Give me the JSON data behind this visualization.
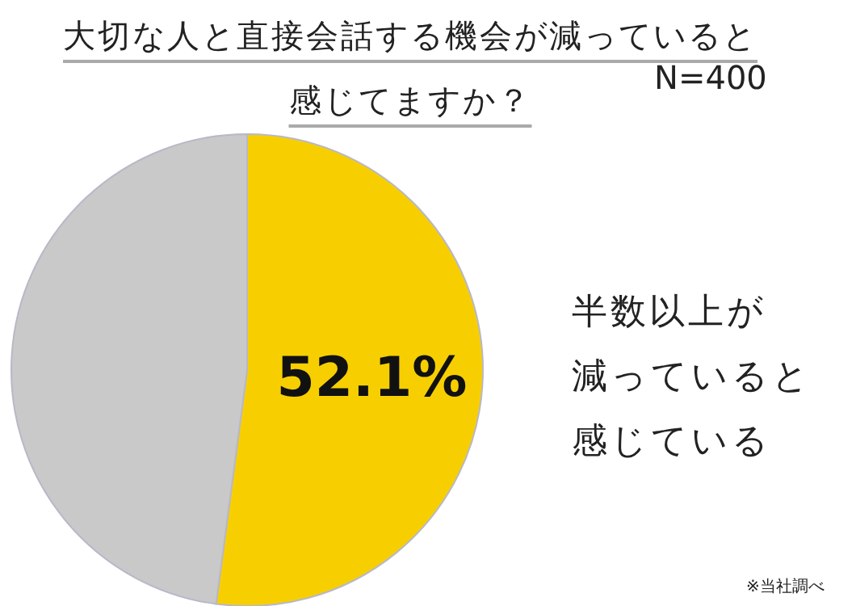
{
  "chart_data": {
    "type": "pie",
    "title": "大切な人と直接会話する機会が減っていると感じてますか？",
    "categories": [
      null,
      null
    ],
    "values": [
      52.1,
      47.9
    ],
    "colors": [
      "#f7cf00",
      "#c9c9c9"
    ],
    "value_labels": [
      "52.1%",
      null
    ],
    "annotations": [
      "N=400",
      "半数以上が",
      "減っていると",
      "感じている",
      "※当社調べ"
    ]
  }
}
